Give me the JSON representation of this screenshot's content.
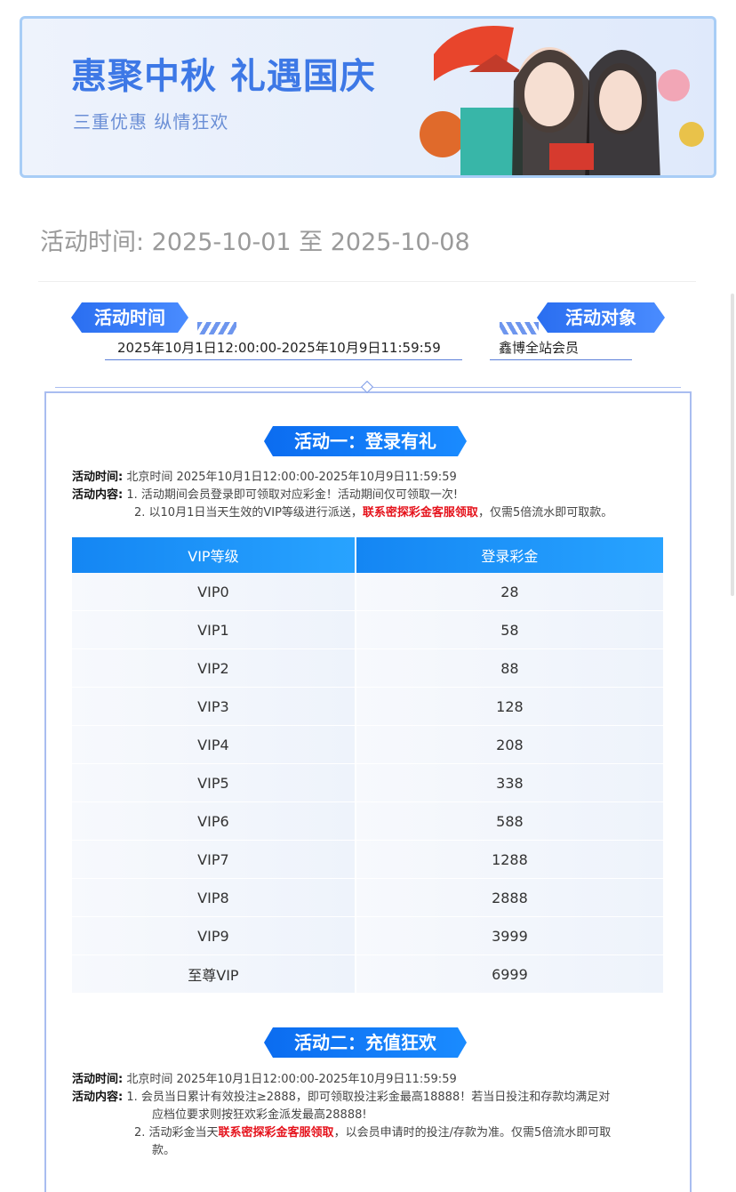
{
  "banner": {
    "title": "惠聚中秋 礼遇国庆",
    "subtitle": "三重优惠 纵情狂欢"
  },
  "date_heading": "活动时间: 2025-10-01 至 2025-10-08",
  "tags": {
    "time_label": "活动时间",
    "time_value": "2025年10月1日12:00:00-2025年10月9日11:59:59",
    "target_label": "活动对象",
    "target_value": "鑫博全站会员"
  },
  "activity1": {
    "title": "活动一：登录有礼",
    "time_label": "活动时间:",
    "time_value": "北京时间 2025年10月1日12:00:00-2025年10月9日11:59:59",
    "content_label": "活动内容:",
    "item1": "1.  活动期间会员登录即可领取对应彩金！活动期间仅可领取一次!",
    "item2_a": "2.  以10月1日当天生效的VIP等级进行派送，",
    "item2_red": "联系密探彩金客服领取",
    "item2_b": "，仅需5倍流水即可取款。",
    "table": {
      "headers": [
        "VIP等级",
        "登录彩金"
      ],
      "rows": [
        [
          "VIP0",
          "28"
        ],
        [
          "VIP1",
          "58"
        ],
        [
          "VIP2",
          "88"
        ],
        [
          "VIP3",
          "128"
        ],
        [
          "VIP4",
          "208"
        ],
        [
          "VIP5",
          "338"
        ],
        [
          "VIP6",
          "588"
        ],
        [
          "VIP7",
          "1288"
        ],
        [
          "VIP8",
          "2888"
        ],
        [
          "VIP9",
          "3999"
        ],
        [
          "至尊VIP",
          "6999"
        ]
      ]
    }
  },
  "activity2": {
    "title": "活动二：充值狂欢",
    "time_label": "活动时间:",
    "time_value": "北京时间 2025年10月1日12:00:00-2025年10月9日11:59:59",
    "content_label": "活动内容:",
    "item1": "1.  会员当日累计有效投注≥2888，即可领取投注彩金最高18888！若当日投注和存款均满足对",
    "item1_cont": "应档位要求则按狂欢彩金派发最高28888!",
    "item2_a": "2.  活动彩金当天",
    "item2_red": "联系密探彩金客服领取",
    "item2_b": "，以会员申请时的投注/存款为准。仅需5倍流水即可取",
    "item2_cont": "款。"
  },
  "colors": {
    "accent": "#1486f3",
    "highlight": "#e5121b",
    "banner_title": "#3d78e6"
  }
}
